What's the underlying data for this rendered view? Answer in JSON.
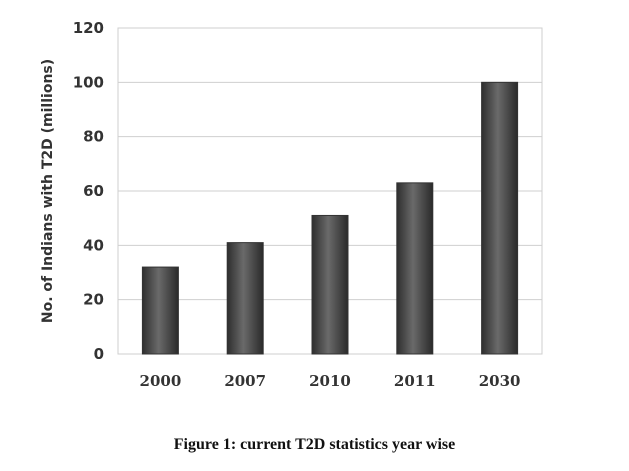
{
  "caption": "Figure 1: current T2D statistics year wise",
  "chart_data": {
    "type": "bar",
    "categories": [
      "2000",
      "2007",
      "2010",
      "2011",
      "2030"
    ],
    "values": [
      32,
      41,
      51,
      63,
      100
    ],
    "title": "",
    "xlabel": "",
    "ylabel": "No. of Indians with T2D (millions)",
    "ylim": [
      0,
      120
    ],
    "yticks": [
      0,
      20,
      40,
      60,
      80,
      100,
      120
    ],
    "grid": true,
    "legend": false,
    "bar_color": "#4a4a4a"
  }
}
